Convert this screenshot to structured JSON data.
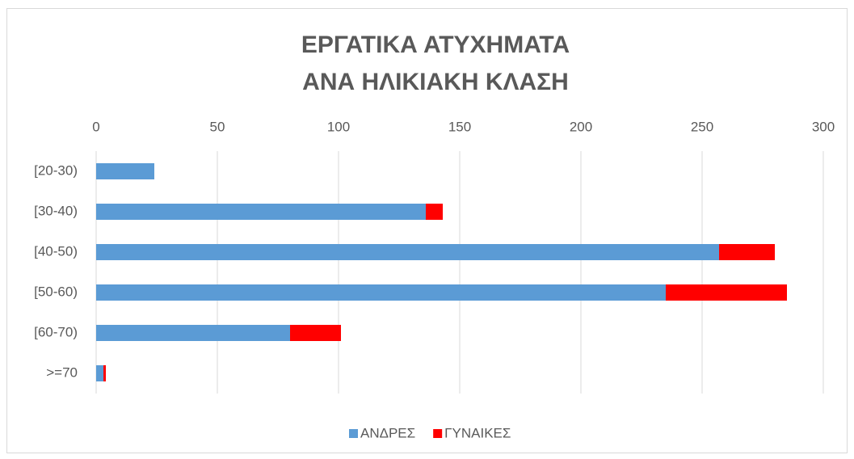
{
  "chart_data": {
    "type": "bar",
    "orientation": "horizontal",
    "stacked": true,
    "title": [
      "ΕΡΓΑΤΙΚΑ ΑΤΥΧΗΜΑΤΑ",
      "ΑΝΑ ΗΛΙΚΙΑΚΗ ΚΛΑΣΗ"
    ],
    "categories": [
      "[20-30)",
      "[30-40)",
      "[40-50)",
      "[50-60)",
      "[60-70)",
      ">=70"
    ],
    "series": [
      {
        "name": "ΑΝΔΡΕΣ",
        "color": "#5b9bd5",
        "values": [
          24,
          136,
          257,
          235,
          80,
          3
        ]
      },
      {
        "name": "ΓΥΝΑΙΚΕΣ",
        "color": "#ff0000",
        "values": [
          0,
          7,
          23,
          50,
          21,
          1
        ]
      }
    ],
    "xlim": [
      0,
      300
    ],
    "xticks": [
      0,
      50,
      100,
      150,
      200,
      250,
      300
    ],
    "grid": true,
    "legend": "bottom"
  }
}
